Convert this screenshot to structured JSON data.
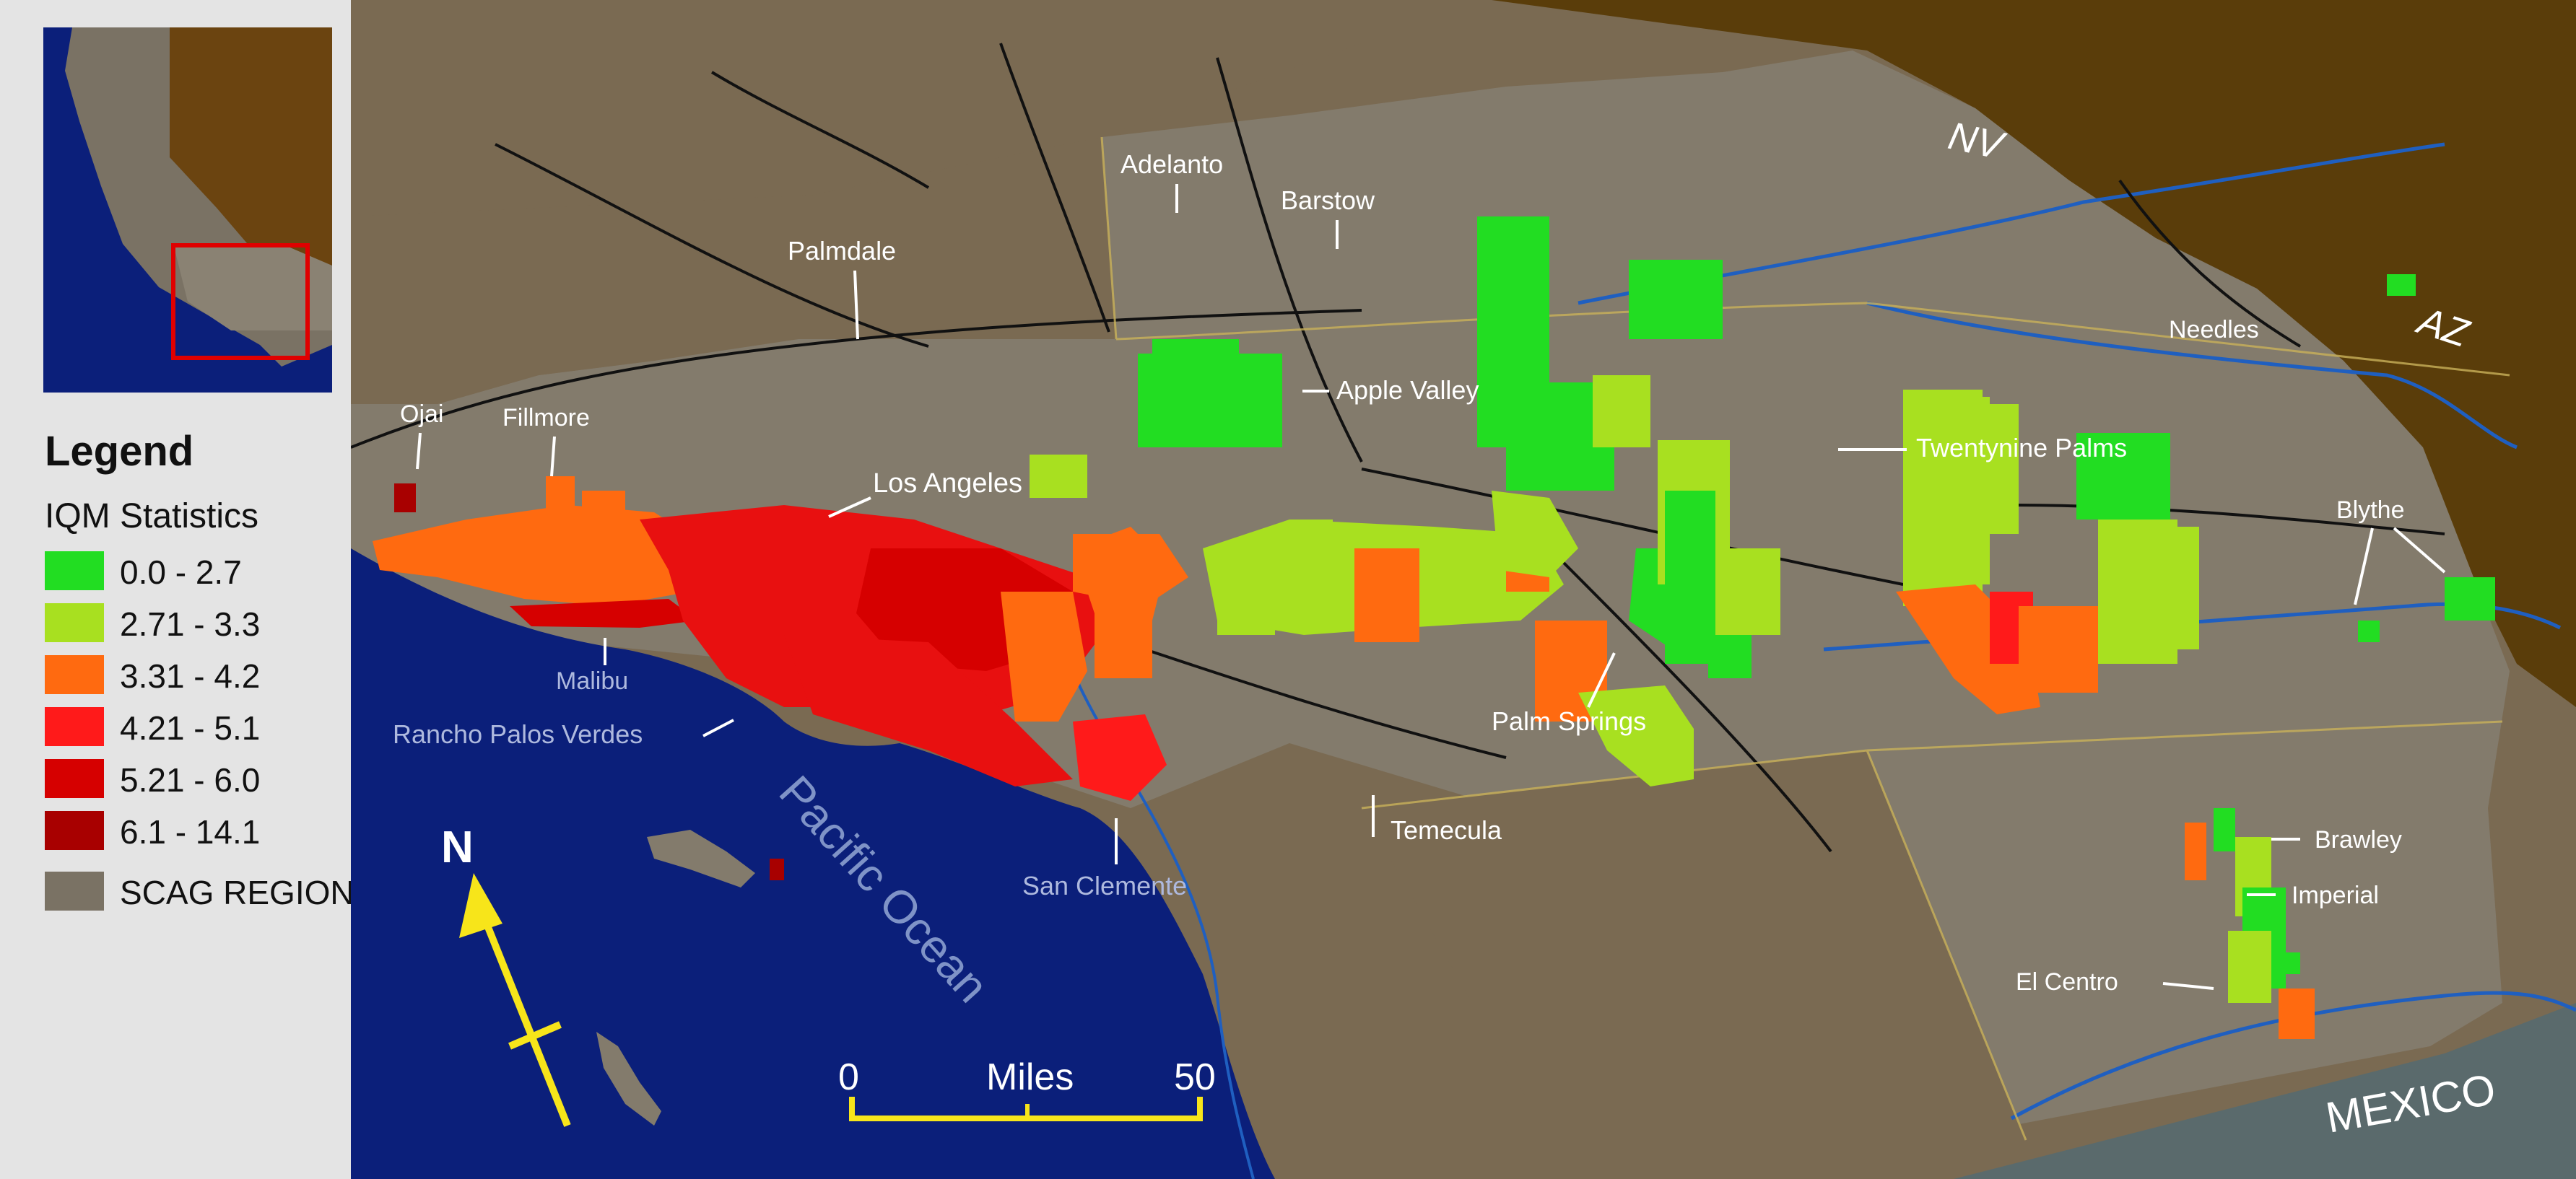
{
  "legend": {
    "title": "Legend",
    "subtitle": "IQM Statistics",
    "classes": [
      {
        "label": "0.0 - 2.7",
        "color": "#22dd22"
      },
      {
        "label": "2.71 - 3.3",
        "color": "#a8e020"
      },
      {
        "label": "3.31 - 4.2",
        "color": "#ff6a10"
      },
      {
        "label": "4.21 - 5.1",
        "color": "#ff1a1a"
      },
      {
        "label": "5.21 - 6.0",
        "color": "#d60000"
      },
      {
        "label": "6.1 - 14.1",
        "color": "#a80000"
      }
    ],
    "region": {
      "label": "SCAG REGION",
      "color": "#7a7264"
    }
  },
  "map": {
    "colors": {
      "ocean": "#0b1f7a",
      "land": "#7a6a52",
      "scag": "#837b6c",
      "neighbor": "#5a3d0a",
      "mexico": "#5a6a6c",
      "road": "#111111",
      "river": "#1f5fc0"
    },
    "states": {
      "nv": "NV",
      "az": "AZ",
      "mexico": "MEXICO"
    },
    "ocean_label": "Pacific Ocean",
    "north_label": "N",
    "scale": {
      "start": "0",
      "unit": "Miles",
      "end": "50"
    },
    "cities": {
      "ojai": "Ojai",
      "fillmore": "Fillmore",
      "palmdale": "Palmdale",
      "adelanto": "Adelanto",
      "barstow": "Barstow",
      "apple_valley": "Apple Valley",
      "los_angeles": "Los Angeles",
      "needles": "Needles",
      "twentynine_palms": "Twentynine Palms",
      "blythe": "Blythe",
      "malibu": "Malibu",
      "rancho": "Rancho Palos Verdes",
      "palm_springs": "Palm Springs",
      "temecula": "Temecula",
      "san_clemente": "San Clemente",
      "brawley": "Brawley",
      "imperial": "Imperial",
      "el_centro": "El Centro"
    }
  }
}
